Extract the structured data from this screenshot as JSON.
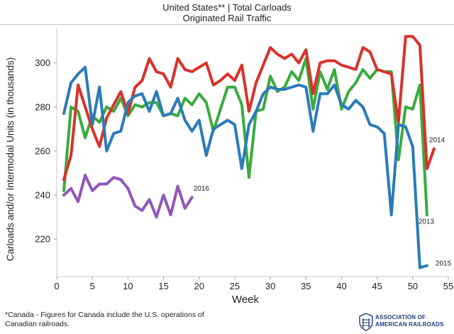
{
  "header": {
    "title": "United States** | Total Carloads",
    "subtitle": "Originated Rail Traffic"
  },
  "chart_data": {
    "type": "line",
    "title": "United States** | Total Carloads",
    "subtitle": "Originated Rail Traffic",
    "xlabel": "Week",
    "ylabel": "Carloads and/or Intermodal Units (in thousands)",
    "xlim": [
      0,
      55
    ],
    "ylim": [
      203,
      316
    ],
    "xticks": [
      0,
      5,
      10,
      15,
      20,
      25,
      30,
      35,
      40,
      45,
      50,
      55
    ],
    "yticks": [
      220,
      240,
      260,
      280,
      300
    ],
    "grid": false,
    "series": [
      {
        "name": "2013",
        "color": "#3bab3e",
        "x": [
          1,
          2,
          3,
          4,
          5,
          6,
          7,
          8,
          9,
          10,
          11,
          12,
          13,
          14,
          15,
          16,
          17,
          18,
          19,
          20,
          21,
          22,
          23,
          24,
          25,
          26,
          27,
          28,
          29,
          30,
          31,
          32,
          33,
          34,
          35,
          36,
          37,
          38,
          39,
          40,
          41,
          42,
          43,
          44,
          45,
          46,
          47,
          48,
          49,
          50,
          51,
          52
        ],
        "values": [
          242,
          280,
          278,
          266,
          276,
          273,
          280,
          278,
          284,
          276,
          281,
          280,
          282,
          282,
          276,
          277,
          276,
          284,
          281,
          286,
          282,
          269,
          279,
          289,
          289,
          281,
          248,
          278,
          279,
          294,
          287,
          289,
          296,
          292,
          302,
          279,
          296,
          288,
          297,
          279,
          287,
          291,
          297,
          293,
          297,
          296,
          296,
          256,
          280,
          279,
          290,
          231
        ]
      },
      {
        "name": "2014",
        "color": "#d9322b",
        "x": [
          1,
          2,
          3,
          4,
          5,
          6,
          7,
          8,
          9,
          10,
          11,
          12,
          13,
          14,
          15,
          16,
          17,
          18,
          19,
          20,
          21,
          22,
          23,
          24,
          25,
          26,
          27,
          28,
          29,
          30,
          31,
          32,
          33,
          34,
          35,
          36,
          37,
          38,
          39,
          40,
          41,
          42,
          43,
          44,
          45,
          46,
          47,
          48,
          49,
          50,
          51,
          52,
          53
        ],
        "values": [
          247,
          258,
          290,
          280,
          270,
          262,
          275,
          281,
          287,
          277,
          289,
          292,
          302,
          296,
          295,
          289,
          302,
          297,
          296,
          298,
          300,
          290,
          292,
          295,
          292,
          299,
          278,
          291,
          299,
          307,
          304,
          302,
          304,
          300,
          306,
          286,
          300,
          301,
          301,
          299,
          298,
          297,
          307,
          305,
          297,
          296,
          295,
          273,
          312,
          312,
          308,
          252,
          261
        ]
      },
      {
        "name": "2015",
        "color": "#2b7bb9",
        "x": [
          1,
          2,
          3,
          4,
          5,
          6,
          7,
          8,
          9,
          10,
          11,
          12,
          13,
          14,
          15,
          16,
          17,
          18,
          19,
          20,
          21,
          22,
          23,
          24,
          25,
          26,
          27,
          28,
          29,
          30,
          31,
          32,
          33,
          34,
          35,
          36,
          37,
          38,
          39,
          40,
          41,
          42,
          43,
          44,
          45,
          46,
          47,
          48,
          49,
          50,
          51,
          52
        ],
        "values": [
          277,
          291,
          295,
          298,
          272,
          289,
          260,
          268,
          269,
          282,
          285,
          286,
          278,
          287,
          276,
          277,
          284,
          274,
          269,
          274,
          258,
          270,
          272,
          274,
          272,
          252,
          272,
          278,
          286,
          289,
          288,
          288,
          289,
          290,
          289,
          269,
          286,
          286,
          290,
          281,
          279,
          283,
          280,
          272,
          271,
          268,
          231,
          272,
          271,
          262,
          207,
          208
        ]
      },
      {
        "name": "2016",
        "color": "#9057b8",
        "x": [
          1,
          2,
          3,
          4,
          5,
          6,
          7,
          8,
          9,
          10,
          11,
          12,
          13,
          14,
          15,
          16,
          17,
          18,
          19
        ],
        "values": [
          240,
          243,
          237,
          249,
          242,
          245,
          245,
          248,
          247,
          243,
          235,
          233,
          238,
          230,
          240,
          231,
          244,
          234,
          239
        ]
      }
    ],
    "labels": [
      {
        "text": "2016",
        "series": "2016",
        "x": 19.2,
        "y": 242
      },
      {
        "text": "2014",
        "series": "2014",
        "x": 52.3,
        "y": 264
      },
      {
        "text": "2013",
        "series": "2013",
        "x": 50.8,
        "y": 227
      },
      {
        "text": "2015",
        "series": "2015",
        "x": 53.2,
        "y": 208
      }
    ]
  },
  "footnote": "*Canada - Figures for Canada include the U.S. operations of Canadian railroads.",
  "logo": {
    "icon": "railroad-shield-icon",
    "line1": "ASSOCIATION OF",
    "line2": "AMERICAN RAILROADS",
    "color": "#1b3e7a"
  }
}
